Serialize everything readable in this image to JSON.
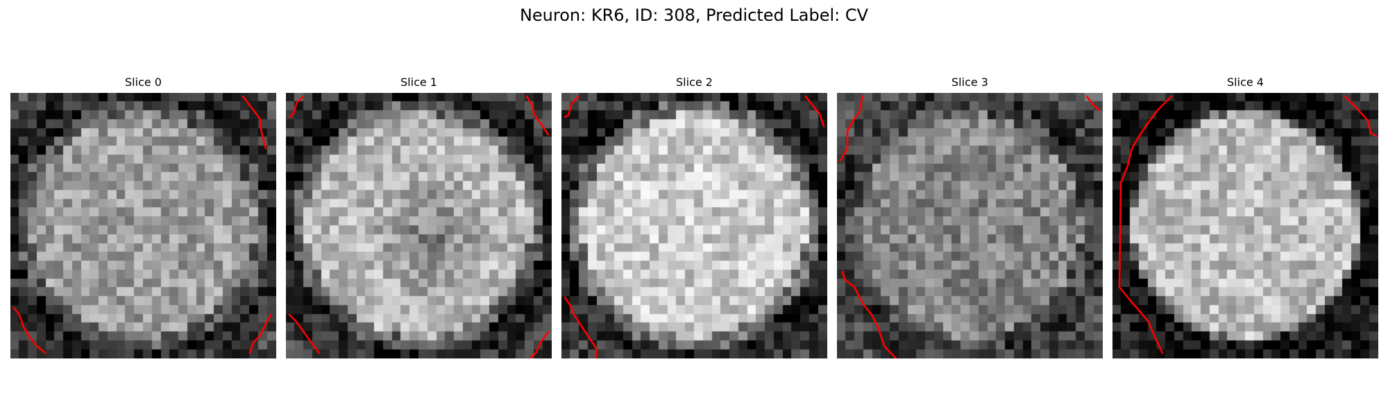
{
  "figure": {
    "title": "Neuron: KR6, ID: 308, Predicted Label: CV"
  },
  "colors": {
    "contour": "#ff0000",
    "colormap": "gray"
  },
  "slices": [
    {
      "title": "Slice 0"
    },
    {
      "title": "Slice 1"
    },
    {
      "title": "Slice 2"
    },
    {
      "title": "Slice 3"
    },
    {
      "title": "Slice 4"
    }
  ]
}
